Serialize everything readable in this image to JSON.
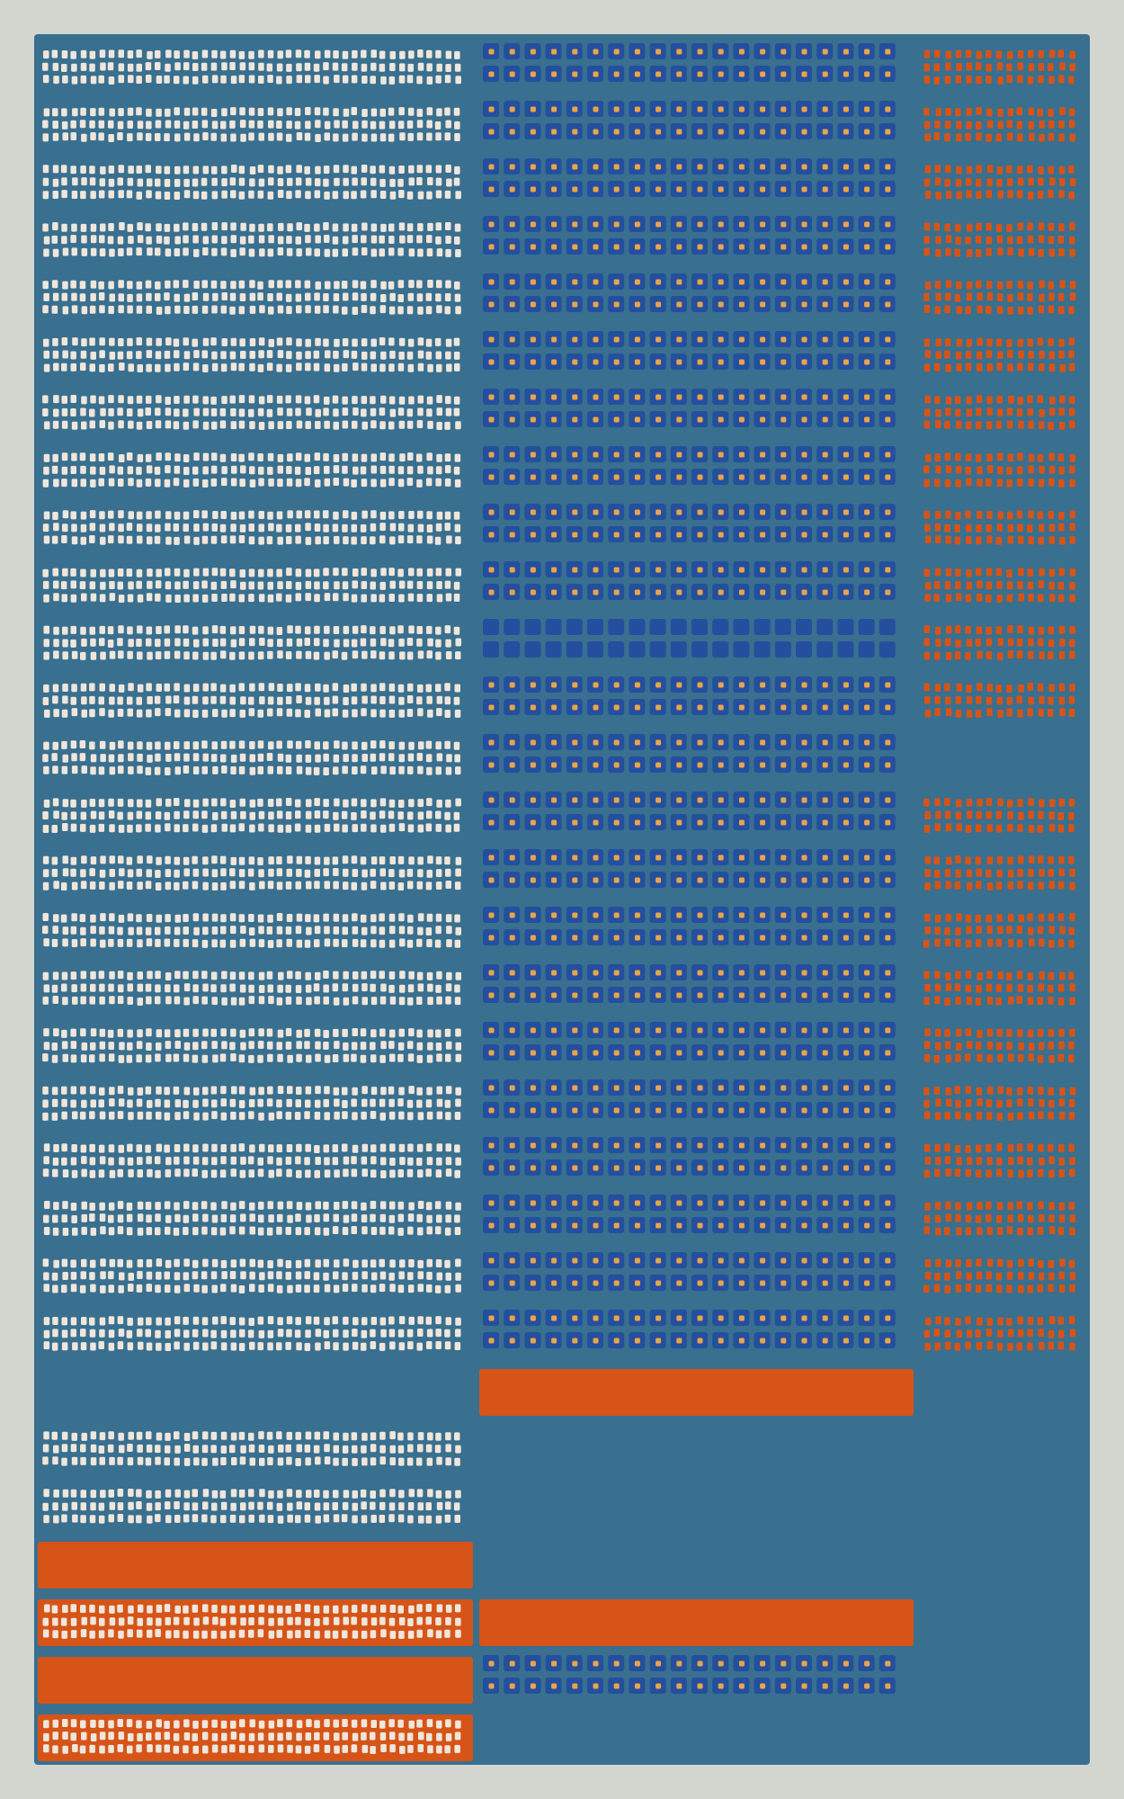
{
  "palette": {
    "background": "#d3d6cf",
    "panel": "#396f8f",
    "cream": "#efe6dc",
    "navy": "#244f9e",
    "orange": "#d65418",
    "gold": "#eaa548"
  },
  "columns": {
    "left": {
      "rows": [
        "cream-dots",
        "cream-dots",
        "cream-dots",
        "cream-dots",
        "cream-dots",
        "cream-dots",
        "cream-dots",
        "cream-dots",
        "cream-dots",
        "cream-dots",
        "cream-dots",
        "cream-dots",
        "cream-dots",
        "cream-dots",
        "cream-dots",
        "cream-dots",
        "cream-dots",
        "cream-dots",
        "cream-dots",
        "cream-dots",
        "cream-dots",
        "cream-dots",
        "cream-dots",
        "empty",
        "cream-dots",
        "cream-dots",
        "orange-bar",
        "cream-dots-on-orange",
        "orange-bar",
        "cream-dots-on-orange"
      ]
    },
    "middle": {
      "rows": [
        "navy-gold-squares",
        "navy-gold-squares",
        "navy-gold-squares",
        "navy-gold-squares",
        "navy-gold-squares",
        "navy-gold-squares",
        "navy-gold-squares",
        "navy-gold-squares",
        "navy-gold-squares",
        "navy-gold-squares",
        "navy-squares-plain",
        "navy-gold-squares",
        "navy-gold-squares",
        "navy-gold-squares",
        "navy-gold-squares",
        "navy-gold-squares",
        "navy-gold-squares",
        "navy-gold-squares",
        "navy-gold-squares",
        "navy-gold-squares",
        "navy-gold-squares",
        "navy-gold-squares",
        "navy-gold-squares",
        "orange-bar",
        "empty",
        "empty",
        "empty",
        "orange-bar",
        "navy-gold-squares",
        "empty"
      ]
    },
    "right": {
      "rows": [
        "orange-dots",
        "orange-dots",
        "orange-dots",
        "orange-dots",
        "orange-dots",
        "orange-dots",
        "orange-dots",
        "orange-dots",
        "orange-dots",
        "orange-dots",
        "orange-dots",
        "orange-dots",
        "empty",
        "orange-dots",
        "orange-dots",
        "orange-dots",
        "orange-dots",
        "orange-dots",
        "orange-dots",
        "orange-dots",
        "orange-dots",
        "orange-dots",
        "orange-dots",
        "empty",
        "empty",
        "empty",
        "empty",
        "empty",
        "empty",
        "empty"
      ]
    }
  }
}
